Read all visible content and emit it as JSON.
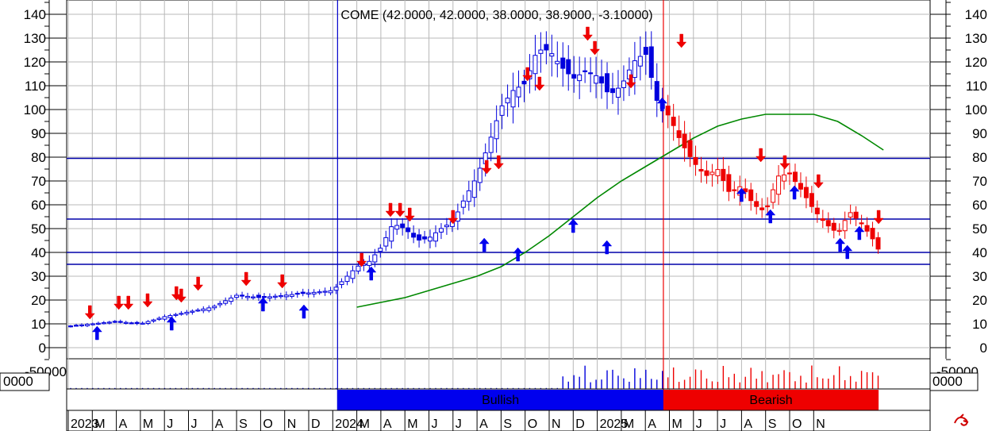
{
  "chart_data": {
    "type": "candlestick",
    "title": "COME (42.0000, 42.0000, 38.0000, 38.9000, -3.10000)",
    "ylim": [
      -5,
      145
    ],
    "yticks": [
      0,
      10,
      20,
      30,
      40,
      50,
      60,
      70,
      80,
      90,
      100,
      110,
      120,
      130,
      140
    ],
    "volume_label_left": "-50000",
    "volume_label_right": "-50000",
    "volume_box_left": "0000",
    "volume_box_right": "0000",
    "x_labels": [
      "2023",
      "M",
      "A",
      "M",
      "J",
      "J",
      "A",
      "S",
      "O",
      "N",
      "D",
      "2024",
      "M",
      "A",
      "M",
      "J",
      "J",
      "A",
      "S",
      "O",
      "N",
      "D",
      "2025",
      "M",
      "A",
      "M",
      "J",
      "J",
      "A",
      "S",
      "O",
      "N"
    ],
    "horizontal_lines": [
      79.5,
      54,
      40,
      35
    ],
    "vertical_markers": [
      {
        "label": "blue",
        "month": 11.2
      },
      {
        "label": "red",
        "month": 24.75
      }
    ],
    "trend_bands": [
      {
        "label": "Bullish",
        "start": 11.2,
        "end": 24.75,
        "color": "#0000ee"
      },
      {
        "label": "Bearish",
        "start": 24.75,
        "end": 33.7,
        "color": "#ee0000"
      }
    ],
    "ma_series": {
      "name": "",
      "x": [
        12,
        13,
        14,
        15,
        16,
        17,
        18,
        19,
        20,
        21,
        22,
        23,
        24,
        25,
        26,
        27,
        28,
        29,
        30,
        31,
        32,
        33,
        33.9
      ],
      "y": [
        17,
        19,
        21,
        24,
        27,
        30,
        34,
        40,
        47,
        55,
        63,
        70,
        76,
        82,
        88,
        93,
        96,
        98,
        98,
        98,
        95,
        89,
        83
      ]
    },
    "price_anchors": {
      "x": [
        0,
        1,
        2,
        3,
        4,
        5,
        6,
        7,
        8,
        9,
        10,
        11,
        11.5,
        12,
        12.5,
        13,
        13.5,
        14,
        14.5,
        15,
        15.5,
        16,
        16.5,
        17,
        17.5,
        18,
        18.5,
        19,
        19.5,
        20,
        20.5,
        21,
        21.5,
        22,
        22.5,
        23,
        23.5,
        24,
        24.5,
        25,
        25.5,
        26,
        26.5,
        27,
        27.5,
        28,
        28.5,
        29,
        29.5,
        30,
        30.5,
        31,
        31.5,
        32,
        32.5,
        33,
        33.5,
        33.8
      ],
      "y": [
        9,
        10,
        11,
        10,
        13,
        15,
        17,
        22,
        21,
        22,
        23,
        24,
        29,
        34,
        36,
        42,
        52,
        50,
        45,
        46,
        50,
        53,
        63,
        72,
        86,
        101,
        108,
        111,
        125,
        125,
        118,
        113,
        116,
        114,
        106,
        110,
        120,
        124,
        103,
        97,
        86,
        78,
        72,
        75,
        65,
        68,
        60,
        57,
        72,
        73,
        66,
        58,
        52,
        48,
        57,
        52,
        45,
        39
      ]
    },
    "up_arrows": [
      [
        1.2,
        6
      ],
      [
        4.3,
        10
      ],
      [
        8.1,
        18
      ],
      [
        9.8,
        15
      ],
      [
        12.6,
        31
      ],
      [
        17.3,
        43
      ],
      [
        18.7,
        39
      ],
      [
        21,
        51
      ],
      [
        22.4,
        42
      ],
      [
        24.7,
        102
      ],
      [
        28,
        64
      ],
      [
        29.2,
        55
      ],
      [
        30.2,
        65
      ],
      [
        32.1,
        43
      ],
      [
        32.4,
        40
      ],
      [
        32.9,
        48
      ]
    ],
    "down_arrows": [
      [
        0.9,
        15
      ],
      [
        2.1,
        19
      ],
      [
        2.5,
        19
      ],
      [
        3.3,
        20
      ],
      [
        4.5,
        23
      ],
      [
        4.7,
        22
      ],
      [
        5.4,
        27
      ],
      [
        7.4,
        29
      ],
      [
        8.9,
        28
      ],
      [
        12.2,
        37
      ],
      [
        13.4,
        58
      ],
      [
        13.8,
        58
      ],
      [
        14.2,
        56
      ],
      [
        16,
        55
      ],
      [
        17.4,
        76
      ],
      [
        17.9,
        78
      ],
      [
        19.1,
        115
      ],
      [
        19.6,
        111
      ],
      [
        21.6,
        132
      ],
      [
        21.9,
        126
      ],
      [
        23.4,
        112
      ],
      [
        25.5,
        129
      ],
      [
        28.8,
        81
      ],
      [
        29.8,
        78
      ],
      [
        31.2,
        70
      ],
      [
        33.7,
        55
      ]
    ],
    "volume_spikes_month_start": 20.5,
    "volume_spikes_month_end": 33.9
  }
}
